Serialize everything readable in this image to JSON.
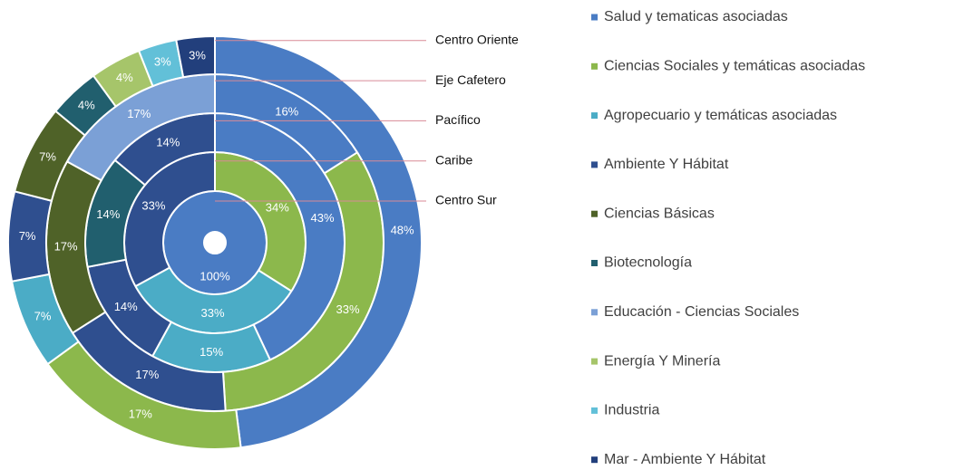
{
  "chart_data": {
    "type": "donut",
    "categories": [
      "Salud y tematicas asociadas",
      "Ciencias Sociales y temáticas asociadas",
      "Agropecuario y temáticas asociadas",
      "Ambiente Y Hábitat",
      "Ciencias Básicas",
      "Biotecnología",
      "Educación - Ciencias Sociales",
      "Energía Y Minería",
      "Industria",
      "Mar - Ambiente Y Hábitat"
    ],
    "colors": [
      "#4a7cc4",
      "#8cb84c",
      "#4bacc6",
      "#2f4f8f",
      "#4f6228",
      "#215f6e",
      "#7ba0d6",
      "#a6c56a",
      "#62c0d8",
      "#223f7c"
    ],
    "rings": [
      {
        "name": "Centro Sur",
        "values": [
          100
        ],
        "value_labels": [
          "100%"
        ],
        "colors": [
          "#4a7cc4"
        ]
      },
      {
        "name": "Caribe",
        "values": [
          34,
          33,
          33
        ],
        "value_labels": [
          "34%",
          "33%",
          "33%"
        ],
        "colors": [
          "#8cb84c",
          "#4bacc6",
          "#2f4f8f"
        ]
      },
      {
        "name": "Pacífico",
        "values": [
          43,
          15,
          14,
          14,
          14
        ],
        "value_labels": [
          "43%",
          "15%",
          "14%",
          "14%",
          "14%"
        ],
        "colors": [
          "#4a7cc4",
          "#4bacc6",
          "#2f4f8f",
          "#215f6e",
          "#2f4f8f"
        ]
      },
      {
        "name": "Eje Cafetero",
        "values": [
          16,
          33,
          17,
          17,
          17
        ],
        "value_labels": [
          "16%",
          "33%",
          "17%",
          "17%",
          "17%"
        ],
        "colors": [
          "#4a7cc4",
          "#8cb84c",
          "#2f4f8f",
          "#4f6228",
          "#7ba0d6"
        ]
      },
      {
        "name": "Centro Oriente",
        "values": [
          48,
          17,
          7,
          7,
          7,
          4,
          4,
          3,
          3
        ],
        "value_labels": [
          "48%",
          "17%",
          "7%",
          "7%",
          "7%",
          "4%",
          "4%",
          "3%",
          "3%"
        ],
        "colors": [
          "#4a7cc4",
          "#8cb84c",
          "#4bacc6",
          "#2f4f8f",
          "#4f6228",
          "#215f6e",
          "#a6c56a",
          "#62c0d8",
          "#223f7c"
        ]
      }
    ]
  }
}
